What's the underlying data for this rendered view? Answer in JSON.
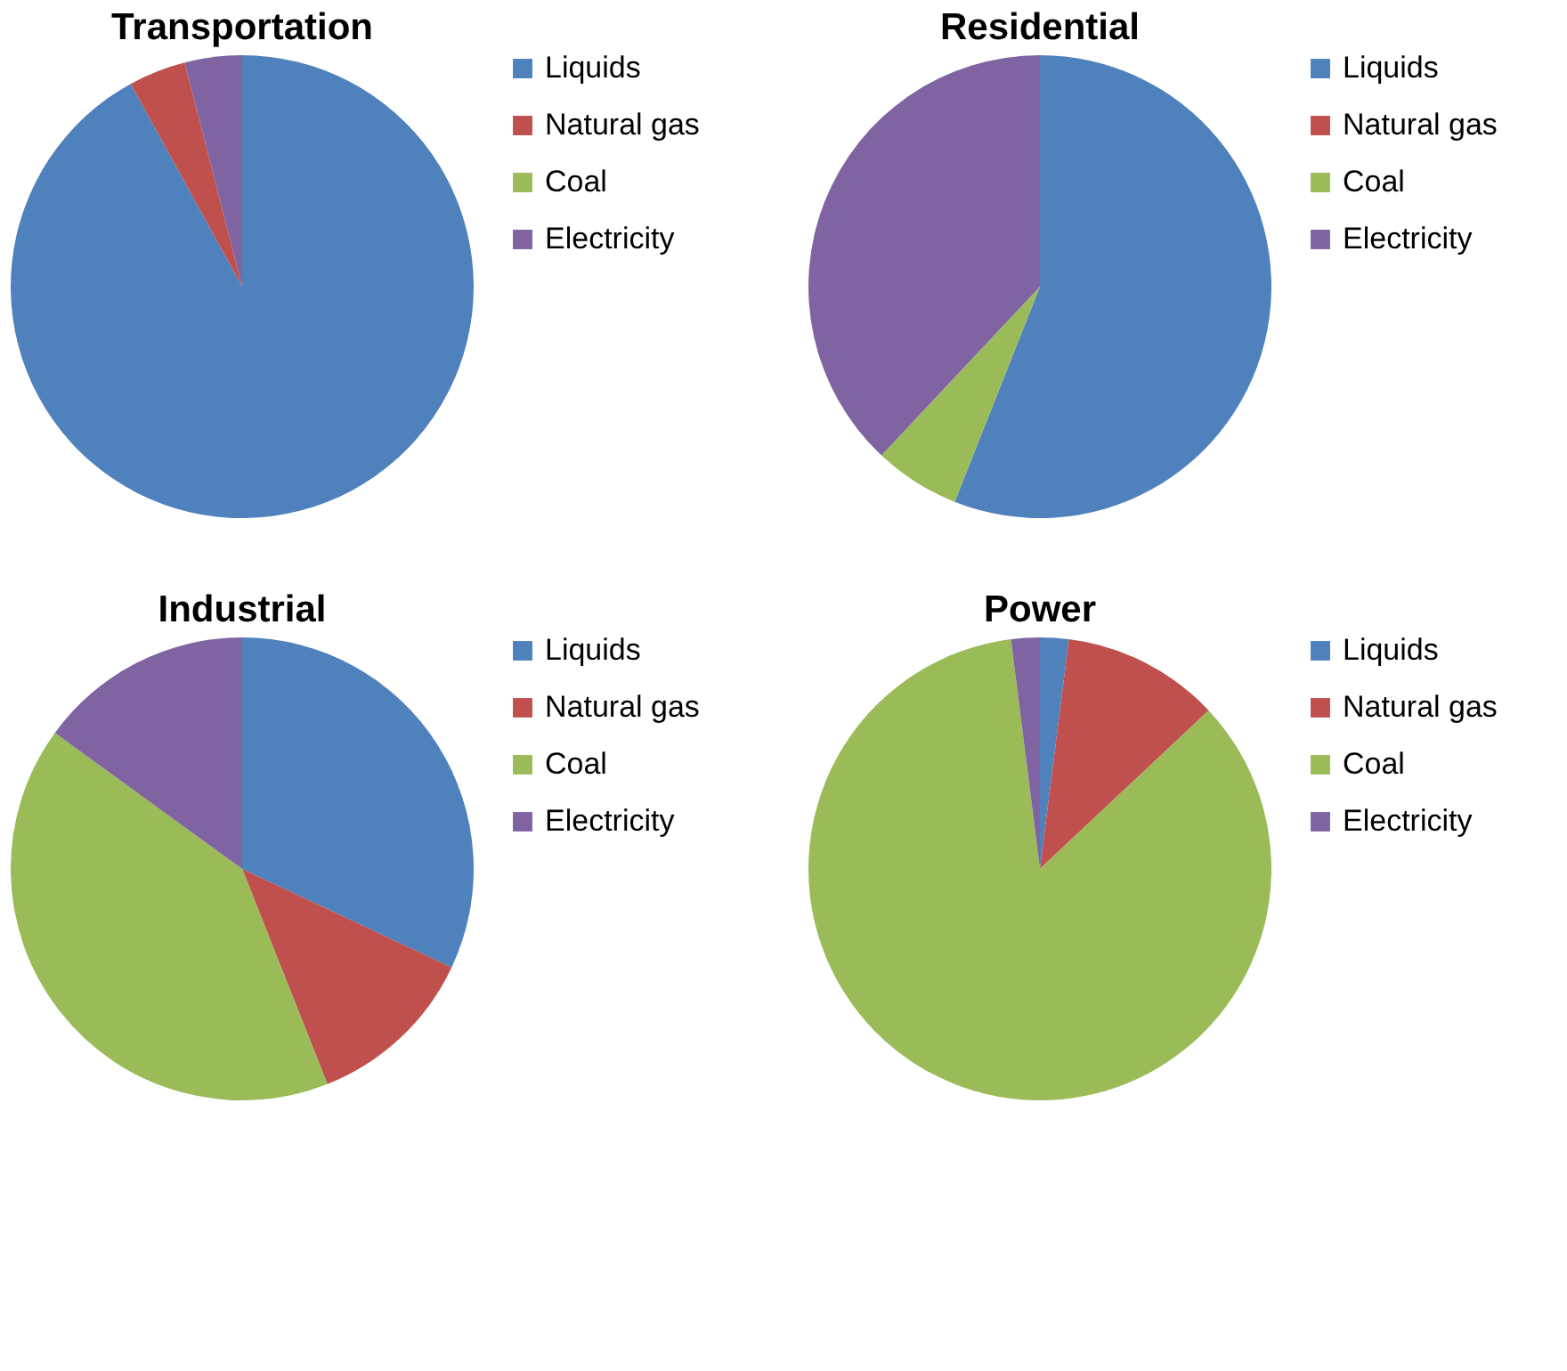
{
  "chart_data": [
    {
      "type": "pie",
      "title": "Transportation",
      "categories": [
        "Liquids",
        "Natural gas",
        "Coal",
        "Electricity"
      ],
      "values": [
        92,
        4,
        0,
        4
      ],
      "colors": [
        "#4f81bd",
        "#c0504d",
        "#9bbb59",
        "#8064a2"
      ],
      "legend": "right"
    },
    {
      "type": "pie",
      "title": "Residential",
      "categories": [
        "Liquids",
        "Natural gas",
        "Coal",
        "Electricity"
      ],
      "values": [
        56,
        0,
        6,
        38
      ],
      "colors": [
        "#4f81bd",
        "#c0504d",
        "#9bbb59",
        "#8064a2"
      ],
      "legend": "right"
    },
    {
      "type": "pie",
      "title": "Industrial",
      "categories": [
        "Liquids",
        "Natural gas",
        "Coal",
        "Electricity"
      ],
      "values": [
        32,
        12,
        41,
        15
      ],
      "colors": [
        "#4f81bd",
        "#c0504d",
        "#9bbb59",
        "#8064a2"
      ],
      "legend": "right"
    },
    {
      "type": "pie",
      "title": "Power",
      "categories": [
        "Liquids",
        "Natural gas",
        "Coal",
        "Electricity"
      ],
      "values": [
        2,
        11,
        85,
        2
      ],
      "colors": [
        "#4f81bd",
        "#c0504d",
        "#9bbb59",
        "#8064a2"
      ],
      "legend": "right"
    }
  ]
}
